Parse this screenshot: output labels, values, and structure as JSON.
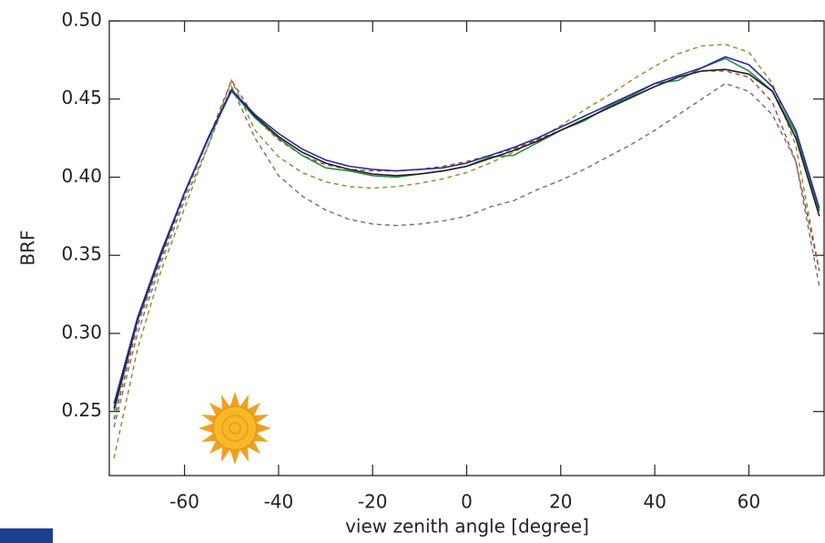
{
  "chart_data": {
    "type": "line",
    "x_label": "view zenith angle [degree]",
    "y_label": "BRF",
    "xlim": [
      -76,
      76
    ],
    "ylim": [
      0.209,
      0.5
    ],
    "xticks": [
      -60,
      -40,
      -20,
      0,
      20,
      40,
      60
    ],
    "yticks": [
      0.25,
      {
        "value": 0.3,
        "label": "0.30"
      },
      0.35,
      {
        "value": 0.4,
        "label": "0.40"
      },
      0.45,
      {
        "value": 0.5,
        "label": "0.50"
      }
    ],
    "x": [
      -75,
      -70,
      -65,
      -60,
      -55,
      -50,
      -45,
      -40,
      -35,
      -30,
      -25,
      -20,
      -15,
      -10,
      -5,
      0,
      5,
      10,
      15,
      20,
      25,
      30,
      35,
      40,
      45,
      50,
      55,
      60,
      65,
      70,
      75
    ],
    "series": [
      {
        "color": "#6f6f6f",
        "dash": true,
        "values": [
          0.24,
          0.3,
          0.345,
          0.385,
          0.42,
          0.458,
          0.425,
          0.401,
          0.388,
          0.379,
          0.373,
          0.37,
          0.369,
          0.37,
          0.372,
          0.375,
          0.381,
          0.385,
          0.392,
          0.398,
          0.405,
          0.413,
          0.421,
          0.43,
          0.44,
          0.45,
          0.46,
          0.455,
          0.44,
          0.41,
          0.33
        ]
      },
      {
        "color": "#8a8a2a",
        "dash": true,
        "values": [
          0.22,
          0.29,
          0.34,
          0.38,
          0.42,
          0.462,
          0.43,
          0.413,
          0.403,
          0.397,
          0.394,
          0.393,
          0.394,
          0.396,
          0.399,
          0.403,
          0.409,
          0.416,
          0.424,
          0.433,
          0.443,
          0.452,
          0.462,
          0.471,
          0.479,
          0.484,
          0.485,
          0.48,
          0.46,
          0.42,
          0.34
        ]
      },
      {
        "color": "#a0463a",
        "dash": true,
        "values": [
          0.245,
          0.305,
          0.348,
          0.388,
          0.424,
          0.462,
          0.438,
          0.424,
          0.414,
          0.408,
          0.405,
          0.404,
          0.404,
          0.405,
          0.407,
          0.41,
          0.414,
          0.418,
          0.424,
          0.43,
          0.437,
          0.444,
          0.451,
          0.458,
          0.464,
          0.468,
          0.468,
          0.464,
          0.448,
          0.41,
          0.34
        ]
      },
      {
        "color": "#2a8a4a",
        "dash": false,
        "values": [
          0.25,
          0.308,
          0.35,
          0.39,
          0.424,
          0.455,
          0.438,
          0.425,
          0.414,
          0.406,
          0.404,
          0.401,
          0.4,
          0.402,
          0.404,
          0.407,
          0.413,
          0.414,
          0.422,
          0.43,
          0.436,
          0.445,
          0.452,
          0.46,
          0.462,
          0.47,
          0.476,
          0.468,
          0.455,
          0.428,
          0.378
        ]
      },
      {
        "color": "#202020",
        "dash": false,
        "values": [
          0.252,
          0.309,
          0.351,
          0.39,
          0.425,
          0.456,
          0.439,
          0.426,
          0.416,
          0.409,
          0.405,
          0.402,
          0.401,
          0.402,
          0.404,
          0.407,
          0.412,
          0.417,
          0.423,
          0.43,
          0.437,
          0.444,
          0.451,
          0.458,
          0.464,
          0.468,
          0.469,
          0.466,
          0.455,
          0.425,
          0.375
        ]
      },
      {
        "color": "#2a2aa0",
        "dash": false,
        "values": [
          0.255,
          0.31,
          0.352,
          0.39,
          0.425,
          0.456,
          0.44,
          0.428,
          0.418,
          0.411,
          0.407,
          0.405,
          0.404,
          0.405,
          0.406,
          0.409,
          0.414,
          0.419,
          0.425,
          0.432,
          0.439,
          0.446,
          0.453,
          0.46,
          0.465,
          0.47,
          0.477,
          0.472,
          0.458,
          0.43,
          0.38
        ]
      }
    ]
  }
}
